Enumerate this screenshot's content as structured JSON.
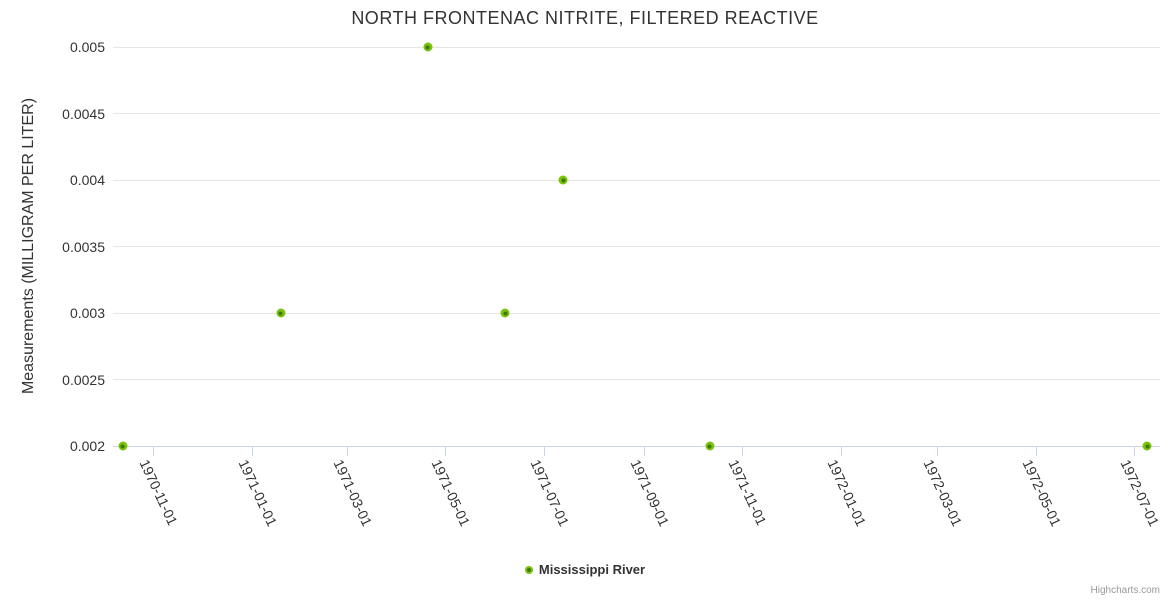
{
  "title": "NORTH FRONTENAC NITRITE, FILTERED REACTIVE",
  "legend": {
    "label": "Mississippi River"
  },
  "credits": "Highcharts.com",
  "colors": {
    "marker_outer": "#7bc30b",
    "marker_inner": "#3e7a05",
    "grid": "#e6e6e6",
    "axis_line": "#ccd6eb",
    "title_color": "#333333",
    "label_color": "#333333",
    "credits_color": "#999999"
  },
  "y_axis": {
    "title": "Measurements (MILLIGRAM PER LITER)"
  },
  "chart_data": {
    "type": "scatter",
    "title": "NORTH FRONTENAC NITRITE, FILTERED REACTIVE",
    "xlabel": "",
    "ylabel": "Measurements (MILLIGRAM PER LITER)",
    "ylim": [
      0.002,
      0.005
    ],
    "xlim": [
      "1970-10-07",
      "1972-07-17"
    ],
    "grid": "horizontal-only",
    "legend_position": "bottom-center",
    "y_ticks": [
      0.002,
      0.0025,
      0.003,
      0.0035,
      0.004,
      0.0045,
      0.005
    ],
    "y_tick_labels": [
      "0.002",
      "0.0025",
      "0.003",
      "0.0035",
      "0.004",
      "0.0045",
      "0.005"
    ],
    "x_ticks": [
      "1970-11-01",
      "1971-01-01",
      "1971-03-01",
      "1971-05-01",
      "1971-07-01",
      "1971-09-01",
      "1971-11-01",
      "1972-01-01",
      "1972-03-01",
      "1972-05-01",
      "1972-07-01"
    ],
    "series": [
      {
        "name": "Mississippi River",
        "points": [
          {
            "date": "1970-10-13",
            "value": 0.002
          },
          {
            "date": "1971-01-19",
            "value": 0.003
          },
          {
            "date": "1971-04-20",
            "value": 0.005
          },
          {
            "date": "1971-06-07",
            "value": 0.003
          },
          {
            "date": "1971-07-13",
            "value": 0.004
          },
          {
            "date": "1971-10-12",
            "value": 0.002
          },
          {
            "date": "1972-07-09",
            "value": 0.002
          }
        ]
      }
    ]
  }
}
